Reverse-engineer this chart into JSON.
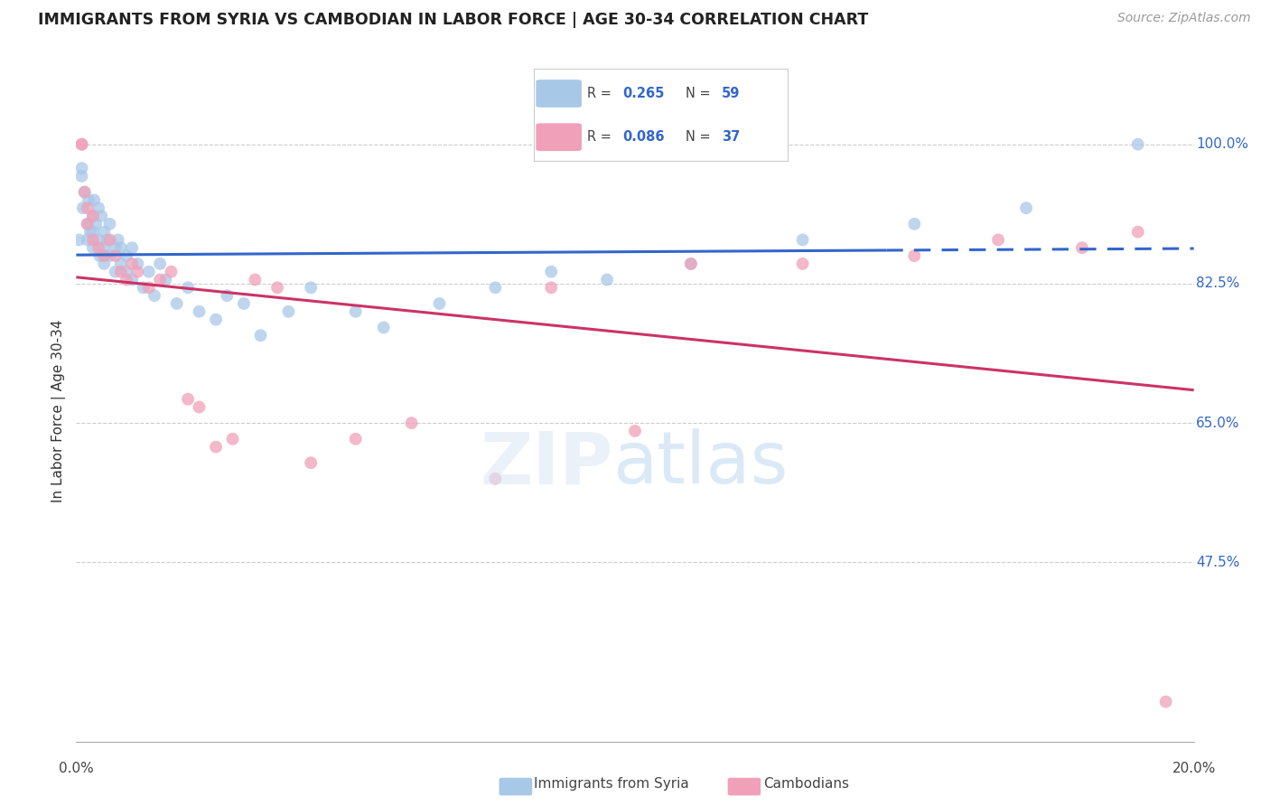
{
  "title": "IMMIGRANTS FROM SYRIA VS CAMBODIAN IN LABOR FORCE | AGE 30-34 CORRELATION CHART",
  "source": "Source: ZipAtlas.com",
  "ylabel": "In Labor Force | Age 30-34",
  "ytick_labels": [
    "100.0%",
    "82.5%",
    "65.0%",
    "47.5%"
  ],
  "ytick_values": [
    1.0,
    0.825,
    0.65,
    0.475
  ],
  "xlim": [
    0.0,
    0.2
  ],
  "ylim": [
    0.25,
    1.08
  ],
  "syria_color": "#a8c8e8",
  "cambodian_color": "#f0a0b8",
  "syria_line_color": "#3366cc",
  "cambodian_line_color": "#cc3366",
  "R_syria": 0.265,
  "N_syria": 59,
  "R_cambodian": 0.086,
  "N_cambodian": 37,
  "syria_line_solid_end": 0.145,
  "syria_x": [
    0.0005,
    0.001,
    0.001,
    0.0012,
    0.0015,
    0.002,
    0.002,
    0.0022,
    0.0025,
    0.003,
    0.003,
    0.003,
    0.0032,
    0.0035,
    0.004,
    0.004,
    0.0042,
    0.0045,
    0.005,
    0.005,
    0.005,
    0.0055,
    0.006,
    0.006,
    0.007,
    0.007,
    0.0075,
    0.008,
    0.008,
    0.009,
    0.009,
    0.01,
    0.01,
    0.011,
    0.012,
    0.013,
    0.014,
    0.015,
    0.016,
    0.018,
    0.02,
    0.022,
    0.025,
    0.027,
    0.03,
    0.033,
    0.038,
    0.042,
    0.05,
    0.055,
    0.065,
    0.075,
    0.085,
    0.095,
    0.11,
    0.13,
    0.15,
    0.17,
    0.19
  ],
  "syria_y": [
    0.88,
    0.96,
    0.97,
    0.92,
    0.94,
    0.9,
    0.88,
    0.93,
    0.89,
    0.91,
    0.89,
    0.87,
    0.93,
    0.9,
    0.88,
    0.92,
    0.86,
    0.91,
    0.87,
    0.89,
    0.85,
    0.88,
    0.86,
    0.9,
    0.87,
    0.84,
    0.88,
    0.85,
    0.87,
    0.84,
    0.86,
    0.83,
    0.87,
    0.85,
    0.82,
    0.84,
    0.81,
    0.85,
    0.83,
    0.8,
    0.82,
    0.79,
    0.78,
    0.81,
    0.8,
    0.76,
    0.79,
    0.82,
    0.79,
    0.77,
    0.8,
    0.82,
    0.84,
    0.83,
    0.85,
    0.88,
    0.9,
    0.92,
    1.0
  ],
  "cambodian_x": [
    0.001,
    0.001,
    0.0015,
    0.002,
    0.002,
    0.003,
    0.003,
    0.004,
    0.005,
    0.006,
    0.007,
    0.008,
    0.009,
    0.01,
    0.011,
    0.013,
    0.015,
    0.017,
    0.02,
    0.022,
    0.025,
    0.028,
    0.032,
    0.036,
    0.042,
    0.05,
    0.06,
    0.075,
    0.085,
    0.1,
    0.11,
    0.13,
    0.15,
    0.165,
    0.18,
    0.19,
    0.195
  ],
  "cambodian_y": [
    1.0,
    1.0,
    0.94,
    0.92,
    0.9,
    0.91,
    0.88,
    0.87,
    0.86,
    0.88,
    0.86,
    0.84,
    0.83,
    0.85,
    0.84,
    0.82,
    0.83,
    0.84,
    0.68,
    0.67,
    0.62,
    0.63,
    0.83,
    0.82,
    0.6,
    0.63,
    0.65,
    0.58,
    0.82,
    0.64,
    0.85,
    0.85,
    0.86,
    0.88,
    0.87,
    0.89,
    0.3
  ]
}
